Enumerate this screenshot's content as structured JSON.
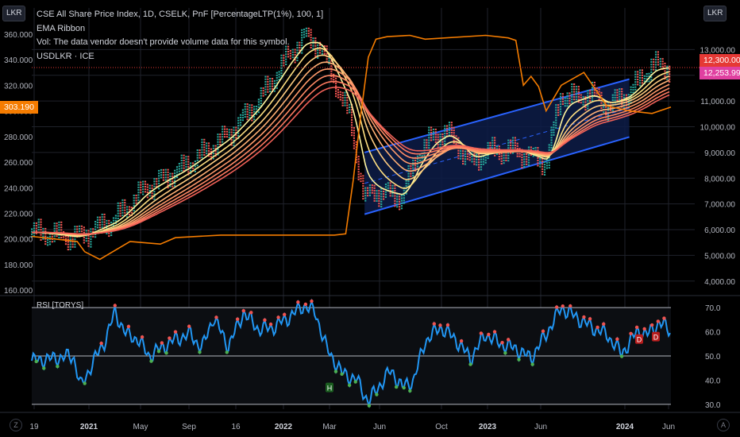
{
  "window": {
    "unit_left": "LKR",
    "unit_right": "LKR",
    "corner_left": "Z",
    "corner_right": "A"
  },
  "legend": {
    "line1": "CSE All Share Price Index, 1D, CSELK, PnF [PercentageLTP(1%), 100, 1]",
    "line2": "EMA Ribbon",
    "line3": "Vol: The data vendor doesn't provide volume data for this symbol.",
    "line4": "USDLKR · ICE"
  },
  "price_tags": {
    "left_current": "303.190",
    "right_cse": "12,300.00",
    "right_ema": "12,253.99"
  },
  "colors": {
    "background": "#000000",
    "grid": "#1f222b",
    "up_box": "#26a69a",
    "down_box": "#ef5350",
    "usdlkr": "#f57c00",
    "channel": "#2962ff",
    "channel_fill": "#0d1c48",
    "rsi_line": "#2196f3",
    "ribbon": [
      "#fff59d",
      "#ffe082",
      "#ffcc80",
      "#ffb074",
      "#ff9a6a",
      "#ff8a65",
      "#ff7a60",
      "#f06158"
    ],
    "tag_orange": "#f57c00",
    "tag_red": "#e53935",
    "tag_pink": "#e040a0"
  },
  "rsi": {
    "title": "RSI [TORYS]"
  },
  "chart_data": [
    {
      "type": "line",
      "title": "CSE All Share Price Index, 1D, CSELK, PnF [PercentageLTP(1%), 100, 1]",
      "x_axis": {
        "tick_labels": [
          "19",
          "2021",
          "May",
          "Sep",
          "16",
          "2022",
          "Mar",
          "Jun",
          "Oct",
          "2023",
          "Jun",
          "2024",
          "Jun"
        ]
      },
      "y_axis_right": {
        "label": "LKR",
        "ylim": [
          3500,
          14000
        ],
        "tick_labels": [
          "13,000.00",
          "12,000.00",
          "11,000.00",
          "10,000.00",
          "9,000.00",
          "8,000.00",
          "7,000.00",
          "6,000.00",
          "5,000.00",
          "4,000.00"
        ]
      },
      "y_axis_left": {
        "label": "LKR",
        "ylim": [
          157,
          368
        ],
        "tick_labels": [
          "360.000",
          "340.000",
          "320.000",
          "300.000",
          "280.000",
          "260.000",
          "240.000",
          "220.000",
          "200.000",
          "180.000",
          "160.000"
        ]
      },
      "series": [
        {
          "name": "CSE All Share Price Index",
          "x": [
            0,
            60,
            110,
            150,
            200,
            260,
            300,
            340,
            360,
            380,
            400,
            420,
            440,
            450,
            470,
            490,
            510,
            530,
            550,
            580,
            600,
            640,
            680,
            700,
            720,
            740,
            760,
            790,
            820,
            845
          ],
          "values": [
            5900,
            5700,
            6400,
            7600,
            8400,
            9700,
            11000,
            12800,
            13500,
            13200,
            11800,
            10400,
            7100,
            7500,
            7400,
            7300,
            8900,
            9600,
            9800,
            8600,
            9000,
            9100,
            8600,
            11300,
            11100,
            11300,
            10800,
            11300,
            12400,
            12300
          ]
        },
        {
          "name": "USDLKR",
          "x": [
            0,
            60,
            70,
            90,
            130,
            170,
            190,
            250,
            300,
            340,
            380,
            400,
            415,
            425,
            435,
            445,
            455,
            470,
            500,
            520,
            600,
            630,
            640,
            650,
            660,
            670,
            680,
            700,
            730,
            760,
            790,
            820,
            845
          ],
          "values": [
            202,
            198,
            190,
            184,
            198,
            196,
            201,
            203,
            203,
            203,
            203,
            203,
            204,
            246,
            297,
            342,
            356,
            358,
            359,
            356,
            359,
            357,
            355,
            320,
            327,
            319,
            300,
            320,
            330,
            304,
            300,
            298,
            303
          ]
        }
      ],
      "ema_ribbon_count": 8,
      "channel": {
        "lower_start": 6600,
        "lower_end": 9600,
        "upper_start": 9000,
        "upper_end": 11850
      }
    },
    {
      "type": "line",
      "title": "RSI [TORYS]",
      "y_axis_right": {
        "ylim": [
          28,
          73
        ],
        "tick_labels": [
          "70.0",
          "60.0",
          "50.0",
          "40.0",
          "30.0"
        ]
      },
      "levels": [
        70,
        50,
        30
      ],
      "series": [
        {
          "name": "RSI",
          "x": [
            0,
            30,
            55,
            65,
            80,
            95,
            110,
            125,
            140,
            155,
            170,
            190,
            210,
            225,
            240,
            260,
            280,
            300,
            320,
            340,
            360,
            375,
            390,
            410,
            430,
            445,
            460,
            475,
            490,
            505,
            520,
            540,
            560,
            580,
            600,
            620,
            640,
            660,
            680,
            700,
            720,
            740,
            760,
            780,
            800,
            815,
            830,
            845
          ],
          "values": [
            48,
            49,
            50,
            37,
            47,
            55,
            68,
            59,
            57,
            50,
            53,
            57,
            59,
            53,
            66,
            54,
            68,
            61,
            62,
            66,
            71,
            68,
            53,
            43,
            40,
            31,
            38,
            44,
            37,
            40,
            56,
            62,
            57,
            49,
            59,
            55,
            53,
            49,
            59,
            70,
            66,
            62,
            59,
            51,
            60,
            59,
            64,
            60
          ]
        }
      ],
      "markers": [
        "H",
        "D",
        "D"
      ]
    }
  ]
}
